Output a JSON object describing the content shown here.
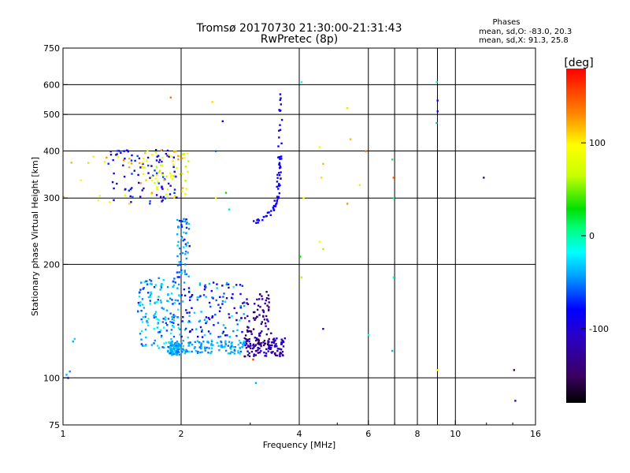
{
  "chart_data": {
    "type": "scatter",
    "title": "Tromsø 20170730 21:30:00-21:31:43",
    "subtitle": "RwPretec (8p)",
    "stats": {
      "heading": "Phases",
      "line1": "mean, sd,O: -83.0, 20.3",
      "line2": "mean, sd,X:  91.3, 25.8"
    },
    "xlabel": "Frequency [MHz]",
    "ylabel": "Stationary phase Virtual Height [km]",
    "xscale": "log",
    "yscale": "log",
    "xlim": [
      1,
      16
    ],
    "ylim": [
      75,
      750
    ],
    "xticks": [
      1,
      2,
      4,
      6,
      8,
      10,
      16
    ],
    "xtick_labels": [
      "1",
      "2",
      "4",
      "6",
      "8",
      "10",
      "16"
    ],
    "xgrid": [
      2,
      4,
      6,
      7,
      8,
      9,
      10
    ],
    "yticks": [
      75,
      100,
      200,
      300,
      400,
      500,
      600,
      750
    ],
    "ytick_labels": [
      "75",
      "100",
      "200",
      "300",
      "400",
      "500",
      "600",
      "750"
    ],
    "grid": true,
    "colorbar": {
      "label": "[deg]",
      "range": [
        -180,
        180
      ],
      "ticks": [
        100,
        0,
        -100
      ],
      "tick_labels": [
        "100",
        "0",
        "-100"
      ]
    },
    "clusters": [
      {
        "x": [
          1.85,
          1.98
        ],
        "y": [
          115,
          125
        ],
        "phase": [
          -60,
          -30
        ],
        "n": 90
      },
      {
        "x": [
          2.0,
          2.9
        ],
        "y": [
          116,
          126
        ],
        "phase": [
          -60,
          -25
        ],
        "n": 110
      },
      {
        "x": [
          2.9,
          3.7
        ],
        "y": [
          114,
          128
        ],
        "phase": [
          -150,
          -95
        ],
        "n": 110
      },
      {
        "x": [
          1.55,
          2.0
        ],
        "y": [
          120,
          185
        ],
        "phase": [
          -70,
          -15
        ],
        "n": 160
      },
      {
        "x": [
          2.0,
          2.9
        ],
        "y": [
          128,
          180
        ],
        "phase": [
          -110,
          -20
        ],
        "n": 130
      },
      {
        "x": [
          2.9,
          3.4
        ],
        "y": [
          122,
          170
        ],
        "phase": [
          -160,
          -110
        ],
        "n": 80
      },
      {
        "x": [
          1.95,
          2.1
        ],
        "y": [
          185,
          265
        ],
        "phase": [
          -80,
          -30
        ],
        "n": 60
      },
      {
        "x": [
          1.3,
          1.95
        ],
        "y": [
          290,
          405
        ],
        "phase": [
          -130,
          -60
        ],
        "n": 90
      },
      {
        "x": [
          1.55,
          2.1
        ],
        "y": [
          300,
          405
        ],
        "phase": [
          60,
          130
        ],
        "n": 70
      },
      {
        "x": [
          1.0,
          1.5
        ],
        "y": [
          280,
          390
        ],
        "phase": [
          80,
          140
        ],
        "n": 18
      }
    ],
    "curves": [
      {
        "x": [
          3.0,
          3.2,
          3.42,
          3.52,
          3.55,
          3.57,
          3.58,
          3.6
        ],
        "y": [
          257,
          263,
          275,
          300,
          340,
          400,
          480,
          560
        ],
        "phase": [
          -100,
          -80
        ],
        "n": 70
      }
    ],
    "scattered": [
      {
        "x": 1.02,
        "y": 102,
        "phase": -40
      },
      {
        "x": 1.04,
        "y": 104,
        "phase": -50
      },
      {
        "x": 1.06,
        "y": 125,
        "phase": -40
      },
      {
        "x": 1.07,
        "y": 127,
        "phase": -30
      },
      {
        "x": 1.03,
        "y": 100,
        "phase": -90
      },
      {
        "x": 1.88,
        "y": 555,
        "phase": 140
      },
      {
        "x": 2.4,
        "y": 540,
        "phase": 110
      },
      {
        "x": 2.55,
        "y": 480,
        "phase": -80
      },
      {
        "x": 2.45,
        "y": 400,
        "phase": -60
      },
      {
        "x": 2.45,
        "y": 300,
        "phase": 80
      },
      {
        "x": 2.6,
        "y": 310,
        "phase": 30
      },
      {
        "x": 2.65,
        "y": 280,
        "phase": -30
      },
      {
        "x": 3.1,
        "y": 97,
        "phase": -40
      },
      {
        "x": 3.05,
        "y": 112,
        "phase": 160
      },
      {
        "x": 4.05,
        "y": 610,
        "phase": -20
      },
      {
        "x": 4.02,
        "y": 210,
        "phase": 30
      },
      {
        "x": 4.05,
        "y": 185,
        "phase": 60
      },
      {
        "x": 4.1,
        "y": 300,
        "phase": 90
      },
      {
        "x": 4.5,
        "y": 410,
        "phase": 90
      },
      {
        "x": 4.6,
        "y": 370,
        "phase": 120
      },
      {
        "x": 4.55,
        "y": 340,
        "phase": 110
      },
      {
        "x": 4.5,
        "y": 230,
        "phase": 100
      },
      {
        "x": 4.6,
        "y": 220,
        "phase": 60
      },
      {
        "x": 4.6,
        "y": 135,
        "phase": -120
      },
      {
        "x": 5.3,
        "y": 520,
        "phase": 110
      },
      {
        "x": 5.4,
        "y": 430,
        "phase": 120
      },
      {
        "x": 5.3,
        "y": 290,
        "phase": 130
      },
      {
        "x": 5.7,
        "y": 325,
        "phase": 70
      },
      {
        "x": 5.9,
        "y": 400,
        "phase": 140
      },
      {
        "x": 6.0,
        "y": 130,
        "phase": -20
      },
      {
        "x": 6.9,
        "y": 380,
        "phase": 10
      },
      {
        "x": 6.95,
        "y": 340,
        "phase": 150
      },
      {
        "x": 6.95,
        "y": 300,
        "phase": 10
      },
      {
        "x": 6.95,
        "y": 185,
        "phase": -10
      },
      {
        "x": 6.9,
        "y": 118,
        "phase": -40
      },
      {
        "x": 8.95,
        "y": 610,
        "phase": -20
      },
      {
        "x": 9.0,
        "y": 545,
        "phase": -90
      },
      {
        "x": 9.0,
        "y": 510,
        "phase": -100
      },
      {
        "x": 8.95,
        "y": 475,
        "phase": -40
      },
      {
        "x": 9.0,
        "y": 105,
        "phase": 100
      },
      {
        "x": 11.8,
        "y": 340,
        "phase": -130
      },
      {
        "x": 14.1,
        "y": 105,
        "phase": -140
      },
      {
        "x": 14.2,
        "y": 87,
        "phase": -100
      }
    ]
  }
}
